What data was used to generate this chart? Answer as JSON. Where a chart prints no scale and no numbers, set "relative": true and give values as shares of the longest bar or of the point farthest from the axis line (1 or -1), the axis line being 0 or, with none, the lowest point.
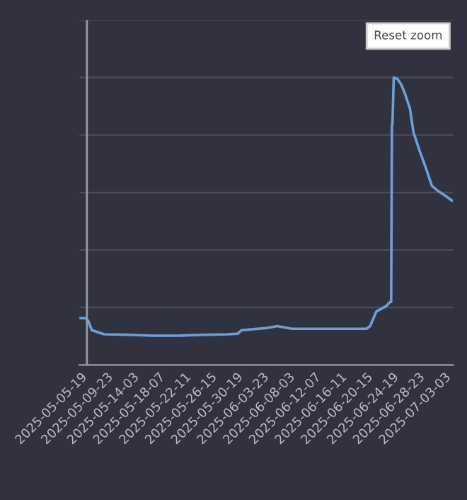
{
  "chart_data": {
    "type": "line",
    "relative": true,
    "grid": "y",
    "legend": false,
    "marker": "none",
    "line_style": "solid",
    "x": [
      "2025-05-05T14:00",
      "2025-05-06T14:00",
      "2025-05-07T00:00",
      "2025-05-07T14:00",
      "2025-05-09T13:00",
      "2025-05-13T13:00",
      "2025-05-17T12:00",
      "2025-05-21T11:00",
      "2025-05-25T10:00",
      "2025-05-29T10:00",
      "2025-05-31T00:00",
      "2025-05-31T14:00",
      "2025-06-04T09:00",
      "2025-06-06T08:00",
      "2025-06-08T17:00",
      "2025-06-12T07:00",
      "2025-06-17T06:00",
      "2025-06-20T15:00",
      "2025-06-21T05:00",
      "2025-06-22T05:00",
      "2025-06-23T19:00",
      "2025-06-24T09:00",
      "2025-06-24T14:00",
      "2025-06-24T17:00",
      "2025-06-24T19:00",
      "2025-06-25T00:00",
      "2025-06-25T14:00",
      "2025-06-26T04:00",
      "2025-06-26T19:00",
      "2025-06-27T14:00",
      "2025-06-28T04:00",
      "2025-06-29T04:00",
      "2025-06-30T04:00",
      "2025-07-01T03:00",
      "2025-07-02T03:00",
      "2025-07-03T03:00",
      "2025-07-04T08:00"
    ],
    "series": [
      {
        "color": "#6f9fd8",
        "values": [
          0.163,
          0.163,
          0.153,
          0.121,
          0.107,
          0.105,
          0.102,
          0.102,
          0.105,
          0.107,
          0.109,
          0.121,
          0.128,
          0.135,
          0.126,
          0.126,
          0.126,
          0.126,
          0.135,
          0.186,
          0.205,
          0.219,
          0.219,
          0.837,
          0.837,
          1.0,
          0.995,
          0.977,
          0.944,
          0.893,
          0.809,
          0.744,
          0.684,
          0.623,
          0.605,
          0.591,
          0.572
        ]
      }
    ],
    "xlim": [
      "2025-05-05T14:00",
      "2025-07-04T12:00"
    ],
    "xticks": [
      {
        "value": "2025-05-05T19:00",
        "label": "2025-05-05-19"
      },
      {
        "value": "2025-05-09T23:00",
        "label": "2025-05-09-23"
      },
      {
        "value": "2025-05-14T03:00",
        "label": "2025-05-14-03"
      },
      {
        "value": "2025-05-18T07:00",
        "label": "2025-05-18-07"
      },
      {
        "value": "2025-05-22T11:00",
        "label": "2025-05-22-11"
      },
      {
        "value": "2025-05-26T15:00",
        "label": "2025-05-26-15"
      },
      {
        "value": "2025-05-30T19:00",
        "label": "2025-05-30-19"
      },
      {
        "value": "2025-06-03T23:00",
        "label": "2025-06-03-23"
      },
      {
        "value": "2025-06-08T03:00",
        "label": "2025-06-08-03"
      },
      {
        "value": "2025-06-12T07:00",
        "label": "2025-06-12-07"
      },
      {
        "value": "2025-06-16T11:00",
        "label": "2025-06-16-11"
      },
      {
        "value": "2025-06-20T15:00",
        "label": "2025-06-20-15"
      },
      {
        "value": "2025-06-24T19:00",
        "label": "2025-06-24-19"
      },
      {
        "value": "2025-06-28T23:00",
        "label": "2025-06-28-23"
      },
      {
        "value": "2025-07-03T03:00",
        "label": "2025-07-03-03"
      }
    ],
    "ref_lines": [
      {
        "axis": "x",
        "value": "2025-05-06T19:00",
        "color": "#9a9aa5"
      }
    ],
    "annotations": [
      "Reset zoom"
    ]
  }
}
